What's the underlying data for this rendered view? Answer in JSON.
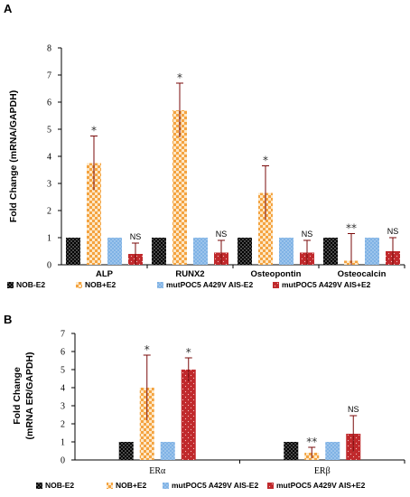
{
  "chart_data": [
    {
      "panel": "A",
      "type": "bar",
      "ylabel": "Fold Change (mRNA/GAPDH)",
      "ylim": [
        0,
        8
      ],
      "yticks": [
        0,
        1,
        2,
        3,
        4,
        5,
        6,
        7,
        8
      ],
      "categories": [
        "ALP",
        "RUNX2",
        "Osteopontin",
        "Osteocalcin"
      ],
      "series": [
        {
          "name": "NOB-E2",
          "pattern": "dots-black",
          "values": [
            1,
            1,
            1,
            1
          ],
          "errors": [
            0,
            0,
            0,
            0
          ],
          "annotations": [
            "",
            "",
            "",
            ""
          ]
        },
        {
          "name": "NOB+E2",
          "pattern": "checker-orange",
          "values": [
            3.75,
            5.7,
            2.65,
            0.15
          ],
          "errors": [
            1.0,
            1.0,
            1.0,
            1.0
          ],
          "annotations": [
            "*",
            "*",
            "*",
            "**"
          ]
        },
        {
          "name": "mutPOC5 A429V AIS-E2",
          "pattern": "dots-blue",
          "values": [
            1,
            1,
            1,
            1
          ],
          "errors": [
            0,
            0,
            0,
            0
          ],
          "annotations": [
            "",
            "",
            "",
            ""
          ]
        },
        {
          "name": "mutPOC5 A429V AIS+E2",
          "pattern": "dots-red",
          "values": [
            0.4,
            0.45,
            0.45,
            0.5
          ],
          "errors": [
            0.4,
            0.45,
            0.45,
            0.5
          ],
          "annotations": [
            "NS",
            "NS",
            "NS",
            "NS"
          ]
        }
      ],
      "grid": false,
      "legend": "bottom"
    },
    {
      "panel": "B",
      "type": "bar",
      "ylabel": "Fold Change (mRNA ER/GAPDH)",
      "ylim": [
        0,
        7
      ],
      "yticks": [
        0,
        1,
        2,
        3,
        4,
        5,
        6,
        7
      ],
      "categories": [
        "ERα",
        "ERβ"
      ],
      "series": [
        {
          "name": "NOB-E2",
          "pattern": "dots-black",
          "values": [
            1,
            1
          ],
          "errors": [
            0,
            0
          ],
          "annotations": [
            "",
            ""
          ]
        },
        {
          "name": "NOB+E2",
          "pattern": "checker-orange",
          "values": [
            4.0,
            0.4
          ],
          "errors": [
            1.8,
            0.3
          ],
          "annotations": [
            "*",
            "**"
          ]
        },
        {
          "name": "mutPOC5 A429V AIS-E2",
          "pattern": "dots-blue",
          "values": [
            1,
            1
          ],
          "errors": [
            0,
            0
          ],
          "annotations": [
            "",
            ""
          ]
        },
        {
          "name": "mutPOC5 A429V AIS+E2",
          "pattern": "dots-red",
          "values": [
            5.0,
            1.45
          ],
          "errors": [
            0.65,
            1.0
          ],
          "annotations": [
            "*",
            "NS"
          ]
        }
      ],
      "grid": false,
      "legend": "bottom"
    }
  ],
  "panels": {
    "A": {
      "letter": "A",
      "ylabel_line1": "Fold Change (mRNA/GAPDH)",
      "ylabel_line2": ""
    },
    "B": {
      "letter": "B",
      "ylabel_line1": "Fold Change",
      "ylabel_line2": "(mRNA ER/GAPDH)"
    }
  },
  "legend_labels": [
    "NOB-E2",
    "NOB+E2",
    "mutPOC5 A429V AIS-E2",
    "mutPOC5 A429V AIS+E2"
  ],
  "colors": {
    "dots-black": "#000000",
    "checker-orange": "#f4a340",
    "dots-blue": "#7fb2e5",
    "dots-red": "#c0292c",
    "axis": "#000000",
    "error": "#7a0a0a"
  }
}
